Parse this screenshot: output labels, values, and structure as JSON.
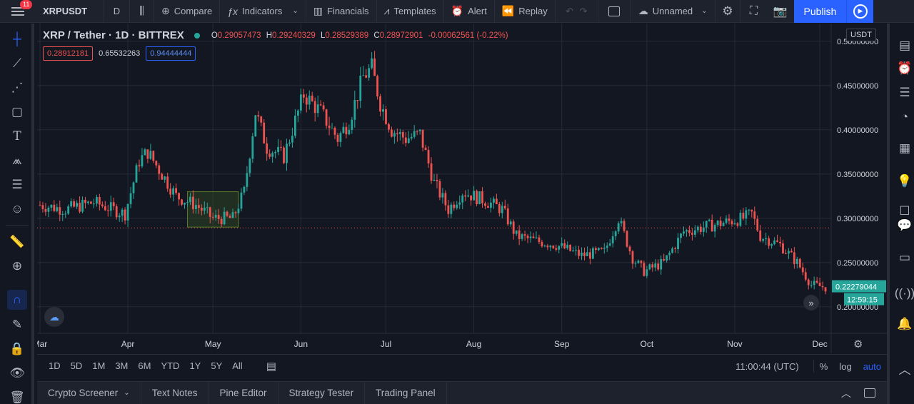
{
  "topbar": {
    "menu_badge": "11",
    "symbol": "XRPUSDT",
    "interval": "D",
    "compare": "Compare",
    "indicators": "Indicators",
    "financials": "Financials",
    "templates": "Templates",
    "alert": "Alert",
    "replay": "Replay",
    "layout_name": "Unnamed",
    "publish": "Publish"
  },
  "legend": {
    "title": "XRP / Tether · 1D · BITTREX",
    "o_label": "O",
    "o": "0.29057473",
    "h_label": "H",
    "h": "0.29240329",
    "l_label": "L",
    "l": "0.28529389",
    "c_label": "C",
    "c": "0.28972901",
    "change": "-0.00062561 (-0.22%)",
    "ind1": "0.28912181",
    "ind2": "0.65532263",
    "ind3": "0.94444444"
  },
  "axis": {
    "currency": "USDT",
    "current_price": "0.22279044",
    "countdown": "12:59:15"
  },
  "bottom": {
    "ranges": [
      "1D",
      "5D",
      "1M",
      "3M",
      "6M",
      "YTD",
      "1Y",
      "5Y",
      "All"
    ],
    "time": "11:00:44 (UTC)",
    "percent": "%",
    "log": "log",
    "auto": "auto"
  },
  "panels": {
    "tabs": [
      "Crypto Screener",
      "Text Notes",
      "Pine Editor",
      "Strategy Tester",
      "Trading Panel"
    ]
  },
  "colors": {
    "up": "#26a69a",
    "down": "#ef5350",
    "accent": "#2962ff",
    "background": "#131722"
  },
  "chart_data": {
    "type": "candlestick",
    "title": "XRP / Tether · 1D · BITTREX",
    "xlabel": "",
    "ylabel": "",
    "x_ticks": [
      "Mar",
      "Apr",
      "May",
      "Jun",
      "Jul",
      "Aug",
      "Sep",
      "Oct",
      "Nov",
      "Dec"
    ],
    "y_ticks": [
      0.2,
      0.25,
      0.3,
      0.35,
      0.4,
      0.45,
      0.5
    ],
    "y_tick_labels": [
      "0.20000000",
      "0.25000000",
      "0.30000000",
      "0.35000000",
      "0.40000000",
      "0.45000000",
      "0.50000000"
    ],
    "ylim": [
      0.17,
      0.52
    ],
    "reference_line": 0.2891,
    "highlight_box": {
      "x_start": "2020-04-22",
      "x_end": "2020-05-10",
      "y_low": 0.29,
      "y_high": 0.33
    },
    "approx_close_series": [
      {
        "date": "2020-03-01",
        "close": 0.315
      },
      {
        "date": "2020-03-10",
        "close": 0.31
      },
      {
        "date": "2020-03-20",
        "close": 0.318
      },
      {
        "date": "2020-03-31",
        "close": 0.305
      },
      {
        "date": "2020-04-05",
        "close": 0.365
      },
      {
        "date": "2020-04-08",
        "close": 0.375
      },
      {
        "date": "2020-04-12",
        "close": 0.355
      },
      {
        "date": "2020-04-18",
        "close": 0.325
      },
      {
        "date": "2020-04-25",
        "close": 0.315
      },
      {
        "date": "2020-05-01",
        "close": 0.3
      },
      {
        "date": "2020-05-08",
        "close": 0.3
      },
      {
        "date": "2020-05-12",
        "close": 0.33
      },
      {
        "date": "2020-05-16",
        "close": 0.42
      },
      {
        "date": "2020-05-20",
        "close": 0.38
      },
      {
        "date": "2020-05-26",
        "close": 0.37
      },
      {
        "date": "2020-06-02",
        "close": 0.44
      },
      {
        "date": "2020-06-08",
        "close": 0.42
      },
      {
        "date": "2020-06-14",
        "close": 0.39
      },
      {
        "date": "2020-06-18",
        "close": 0.41
      },
      {
        "date": "2020-06-23",
        "close": 0.46
      },
      {
        "date": "2020-06-26",
        "close": 0.47
      },
      {
        "date": "2020-06-29",
        "close": 0.43
      },
      {
        "date": "2020-07-03",
        "close": 0.4
      },
      {
        "date": "2020-07-08",
        "close": 0.39
      },
      {
        "date": "2020-07-13",
        "close": 0.395
      },
      {
        "date": "2020-07-18",
        "close": 0.34
      },
      {
        "date": "2020-07-23",
        "close": 0.31
      },
      {
        "date": "2020-07-28",
        "close": 0.33
      },
      {
        "date": "2020-08-05",
        "close": 0.32
      },
      {
        "date": "2020-08-11",
        "close": 0.31
      },
      {
        "date": "2020-08-16",
        "close": 0.28
      },
      {
        "date": "2020-08-22",
        "close": 0.275
      },
      {
        "date": "2020-08-30",
        "close": 0.27
      },
      {
        "date": "2020-09-08",
        "close": 0.258
      },
      {
        "date": "2020-09-16",
        "close": 0.262
      },
      {
        "date": "2020-09-21",
        "close": 0.3
      },
      {
        "date": "2020-09-26",
        "close": 0.255
      },
      {
        "date": "2020-09-30",
        "close": 0.24
      },
      {
        "date": "2020-10-07",
        "close": 0.25
      },
      {
        "date": "2020-10-14",
        "close": 0.285
      },
      {
        "date": "2020-10-21",
        "close": 0.29
      },
      {
        "date": "2020-10-28",
        "close": 0.295
      },
      {
        "date": "2020-11-04",
        "close": 0.3
      },
      {
        "date": "2020-11-07",
        "close": 0.305
      },
      {
        "date": "2020-11-10",
        "close": 0.28
      },
      {
        "date": "2020-11-17",
        "close": 0.27
      },
      {
        "date": "2020-11-23",
        "close": 0.25
      },
      {
        "date": "2020-11-28",
        "close": 0.225
      },
      {
        "date": "2020-12-03",
        "close": 0.222
      }
    ]
  }
}
